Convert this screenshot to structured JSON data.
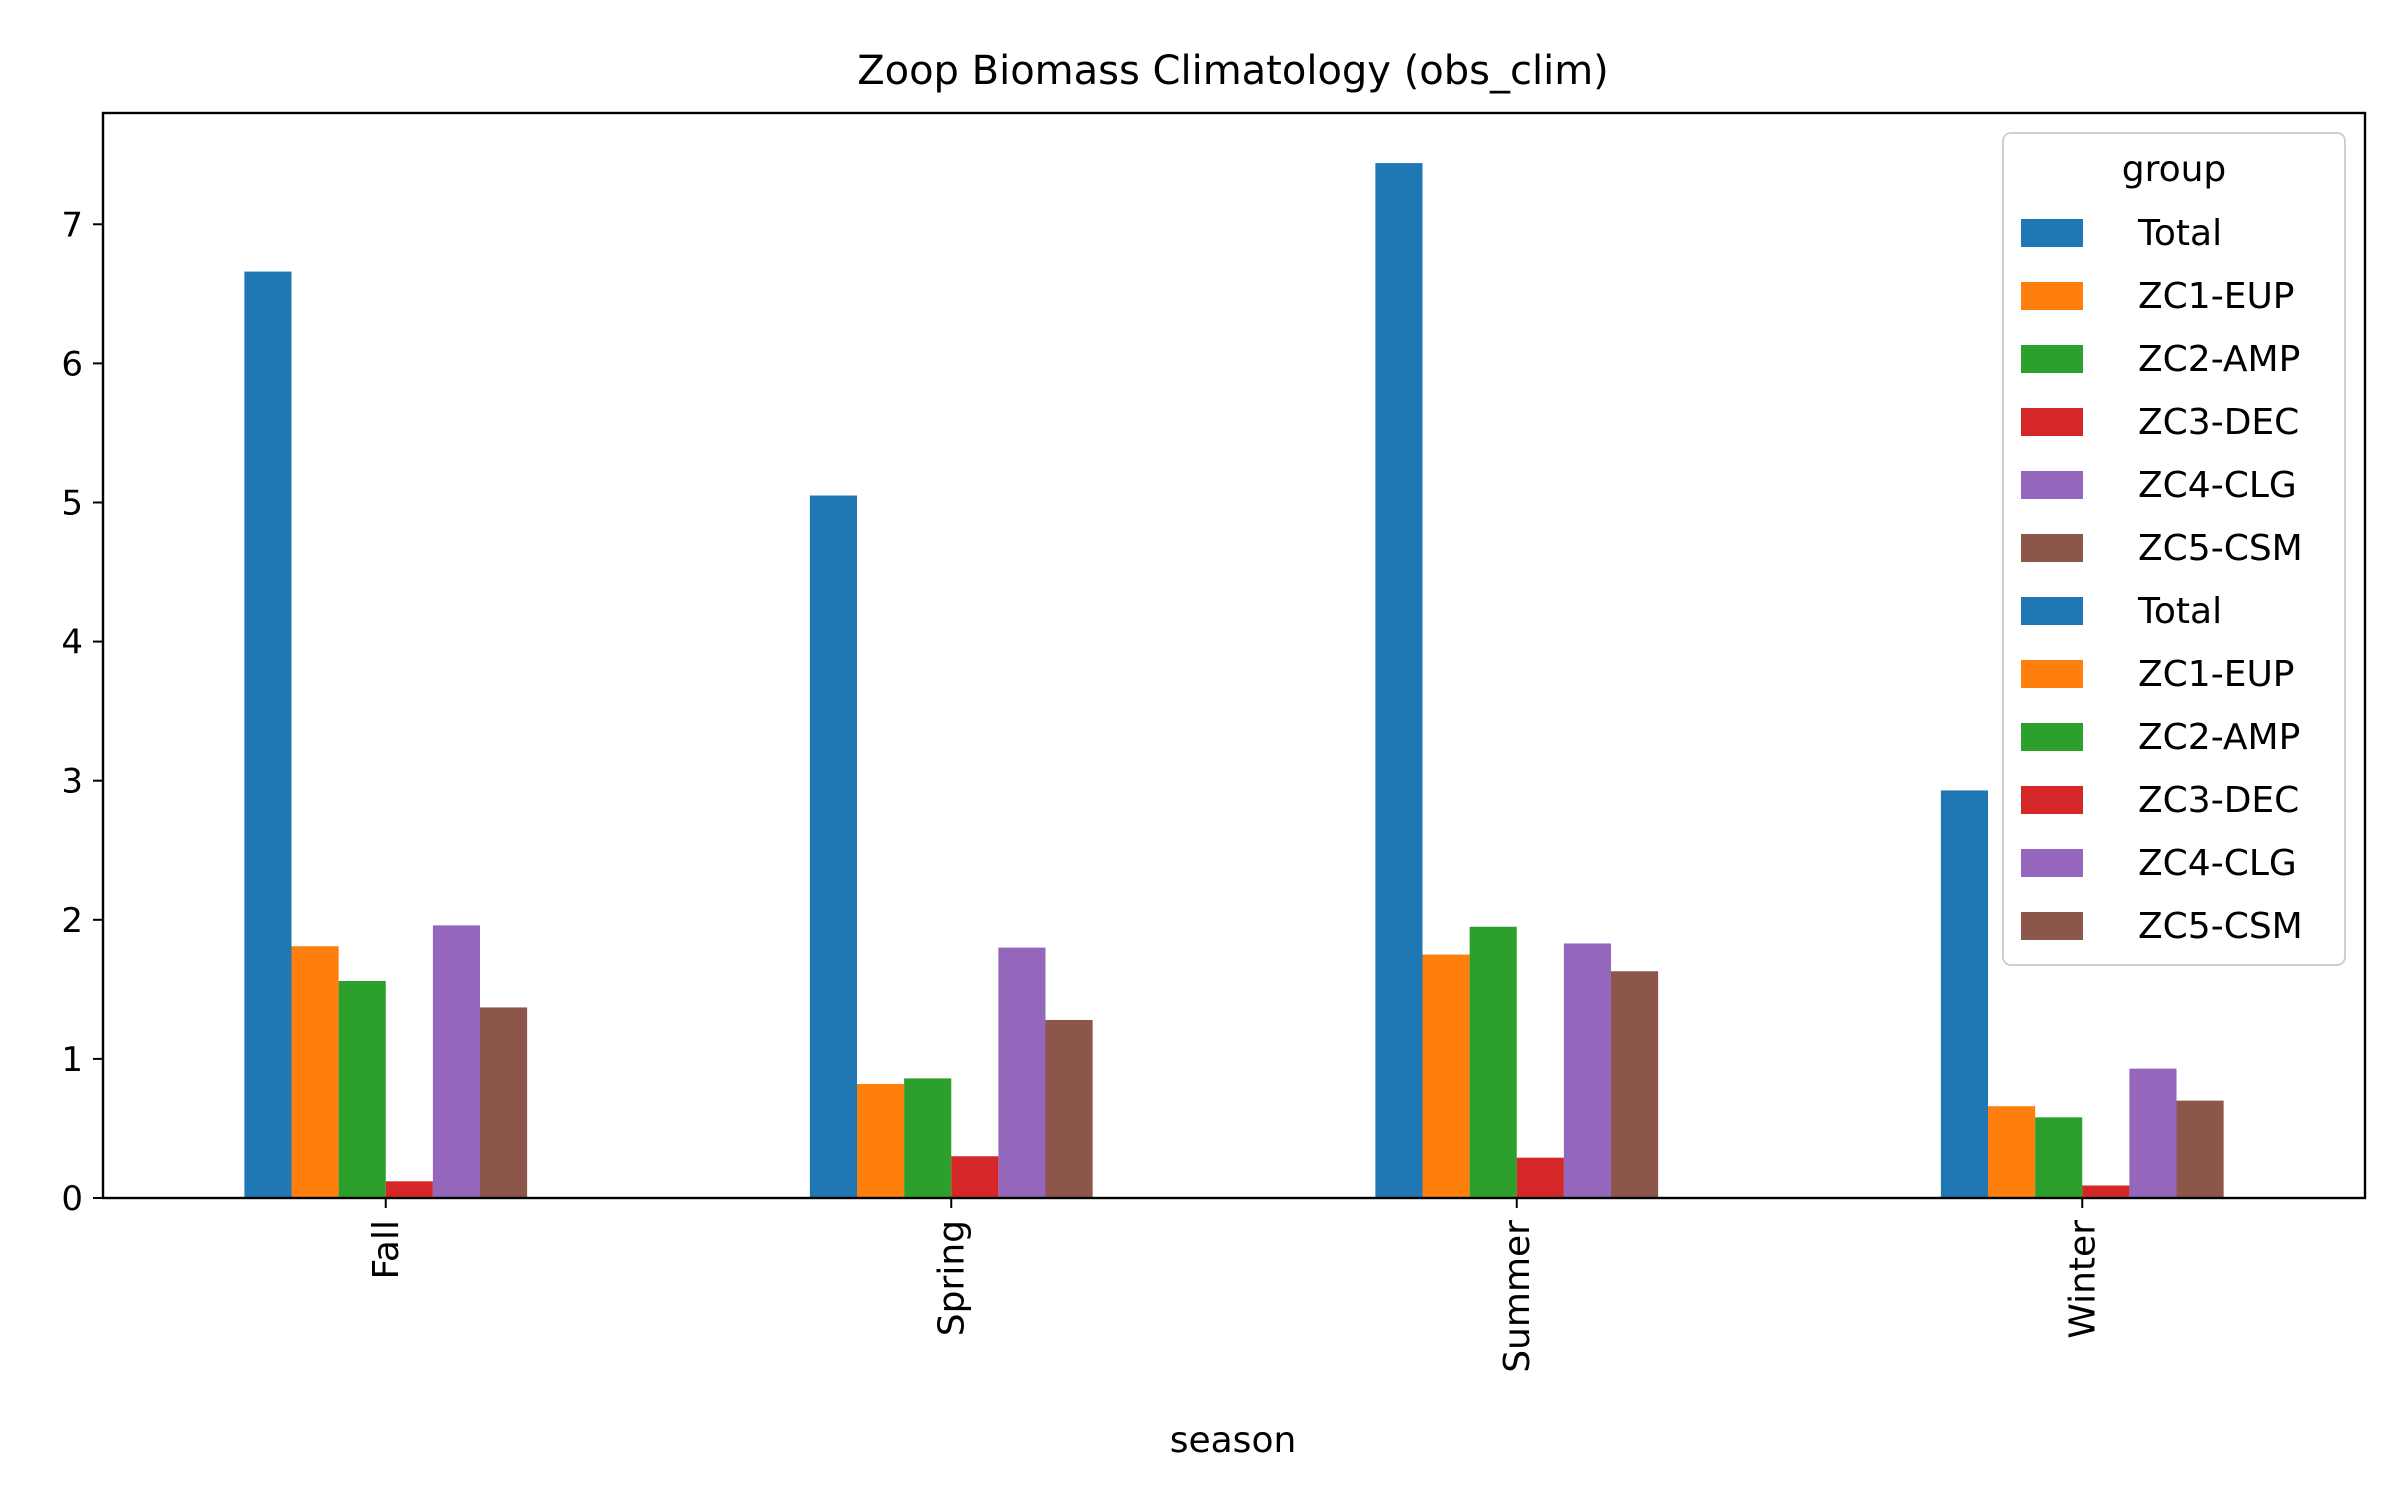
{
  "chart_data": {
    "type": "bar",
    "title": "Zoop Biomass Climatology (obs_clim)",
    "xlabel": "season",
    "ylabel": "",
    "categories": [
      "Fall",
      "Spring",
      "Summer",
      "Winter"
    ],
    "ylim": [
      0,
      7.8
    ],
    "yticks": [
      0,
      1,
      2,
      3,
      4,
      5,
      6,
      7
    ],
    "grid": false,
    "legend_title": "group",
    "legend_position": "top-right",
    "series": [
      {
        "name": "Total",
        "color": "#1f77b4",
        "values": [
          6.66,
          5.05,
          7.44,
          2.93
        ]
      },
      {
        "name": "ZC1-EUP",
        "color": "#ff7f0e",
        "values": [
          1.81,
          0.82,
          1.75,
          0.66
        ]
      },
      {
        "name": "ZC2-AMP",
        "color": "#2ca02c",
        "values": [
          1.56,
          0.86,
          1.95,
          0.58
        ]
      },
      {
        "name": "ZC3-DEC",
        "color": "#d62728",
        "values": [
          0.12,
          0.3,
          0.29,
          0.09
        ]
      },
      {
        "name": "ZC4-CLG",
        "color": "#9467bd",
        "values": [
          1.96,
          1.8,
          1.83,
          0.93
        ]
      },
      {
        "name": "ZC5-CSM",
        "color": "#8c564b",
        "values": [
          1.37,
          1.28,
          1.63,
          0.7
        ]
      }
    ],
    "legend_entries": [
      {
        "label": "Total",
        "color": "#1f77b4"
      },
      {
        "label": "ZC1-EUP",
        "color": "#ff7f0e"
      },
      {
        "label": "ZC2-AMP",
        "color": "#2ca02c"
      },
      {
        "label": "ZC3-DEC",
        "color": "#d62728"
      },
      {
        "label": "ZC4-CLG",
        "color": "#9467bd"
      },
      {
        "label": "ZC5-CSM",
        "color": "#8c564b"
      },
      {
        "label": "Total",
        "color": "#1f77b4"
      },
      {
        "label": "ZC1-EUP",
        "color": "#ff7f0e"
      },
      {
        "label": "ZC2-AMP",
        "color": "#2ca02c"
      },
      {
        "label": "ZC3-DEC",
        "color": "#d62728"
      },
      {
        "label": "ZC4-CLG",
        "color": "#9467bd"
      },
      {
        "label": "ZC5-CSM",
        "color": "#8c564b"
      }
    ]
  }
}
